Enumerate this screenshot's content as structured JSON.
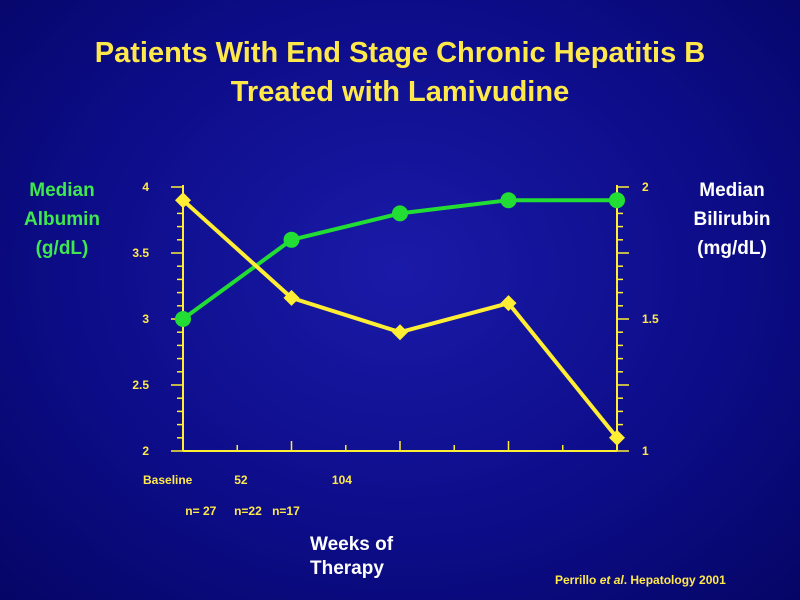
{
  "title_line1": "Patients With End Stage Chronic Hepatitis B",
  "title_line2": "Treated with Lamivudine",
  "left_axis": {
    "line1": "Median",
    "line2": "Albumin",
    "line3": "(g/dL)"
  },
  "right_axis": {
    "line1": "Median",
    "line2": "Bilirubin",
    "line3": "(mg/dL)"
  },
  "x_title": {
    "line1": "Weeks of",
    "line2": "Therapy"
  },
  "citation": {
    "prefix": "Perrillo ",
    "italic": "et al",
    "suffix": ". Hepatology 2001"
  },
  "colors": {
    "albumin": "#22dd33",
    "bilirubin": "#ffee33",
    "axis": "#ffee33",
    "background": "#0d0d8a"
  },
  "chart_data": {
    "type": "line",
    "x_positions": [
      0,
      1,
      2,
      3,
      4
    ],
    "x_tick_labels": [
      {
        "pos": 0,
        "label": "Baseline"
      },
      {
        "pos": 0.5,
        "label": "52"
      },
      {
        "pos": 1.4,
        "label": "104"
      }
    ],
    "n_labels": [
      {
        "pos": 0.15,
        "label": "n= 27"
      },
      {
        "pos": 0.6,
        "label": "n=22"
      },
      {
        "pos": 0.95,
        "label": "n=17"
      }
    ],
    "series": [
      {
        "axis": "left",
        "marker": "circle",
        "values": [
          3.0,
          3.6,
          3.8,
          3.9,
          3.9
        ]
      },
      {
        "axis": "right",
        "marker": "diamond",
        "values": [
          1.95,
          1.58,
          1.45,
          1.56,
          1.05
        ]
      }
    ],
    "left_axis": {
      "ylim": [
        2,
        4
      ],
      "ticks": [
        "4",
        "3.5",
        "3",
        "2.5",
        "2"
      ],
      "tick_values": [
        4,
        3.5,
        3,
        2.5,
        2
      ]
    },
    "right_axis": {
      "ylim": [
        1,
        2
      ],
      "ticks": [
        "2",
        "1.5",
        "1"
      ],
      "tick_values": [
        2,
        1.5,
        1
      ]
    },
    "grid": false,
    "legend": "none"
  }
}
